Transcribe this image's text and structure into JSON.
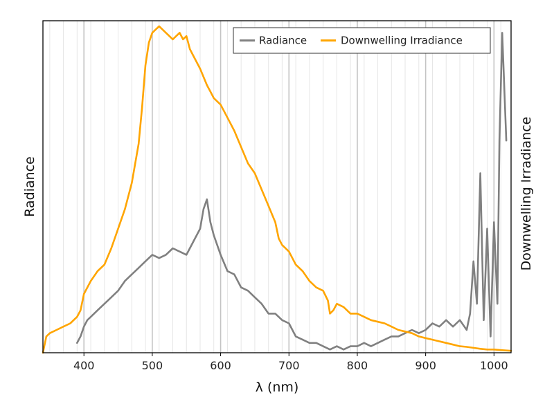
{
  "chart_data": {
    "type": "line",
    "xlabel": "λ (nm)",
    "ylabel_left": "Radiance",
    "ylabel_right": "Downwelling Irradiance",
    "xlim": [
      340,
      1025
    ],
    "xticks": [
      400,
      500,
      600,
      700,
      800,
      900,
      1000
    ],
    "grid": {
      "major_vertical": true,
      "minor_vertical": true,
      "horizontal": false
    },
    "y_tick_labels_shown": false,
    "legend_position": "top-right",
    "series": [
      {
        "name": "Radiance",
        "color": "#808080",
        "y_axis": "left",
        "values_relative": true,
        "ylim": [
          0,
          1
        ],
        "x": [
          390,
          395,
          400,
          405,
          410,
          420,
          430,
          440,
          450,
          460,
          470,
          480,
          490,
          500,
          510,
          520,
          530,
          540,
          550,
          560,
          570,
          575,
          580,
          585,
          590,
          600,
          610,
          620,
          630,
          640,
          650,
          660,
          670,
          680,
          690,
          700,
          710,
          720,
          730,
          740,
          750,
          760,
          770,
          780,
          790,
          800,
          810,
          820,
          830,
          840,
          850,
          860,
          870,
          880,
          890,
          900,
          910,
          920,
          930,
          940,
          950,
          960,
          965,
          970,
          975,
          980,
          985,
          990,
          995,
          1000,
          1005,
          1008,
          1012,
          1018
        ],
        "y": [
          0.03,
          0.05,
          0.08,
          0.1,
          0.11,
          0.13,
          0.15,
          0.17,
          0.19,
          0.22,
          0.24,
          0.26,
          0.28,
          0.3,
          0.29,
          0.3,
          0.32,
          0.31,
          0.3,
          0.34,
          0.38,
          0.44,
          0.47,
          0.4,
          0.36,
          0.3,
          0.25,
          0.24,
          0.2,
          0.19,
          0.17,
          0.15,
          0.12,
          0.12,
          0.1,
          0.09,
          0.05,
          0.04,
          0.03,
          0.03,
          0.02,
          0.01,
          0.02,
          0.01,
          0.02,
          0.02,
          0.03,
          0.02,
          0.03,
          0.04,
          0.05,
          0.05,
          0.06,
          0.07,
          0.06,
          0.07,
          0.09,
          0.08,
          0.1,
          0.08,
          0.1,
          0.07,
          0.12,
          0.28,
          0.15,
          0.55,
          0.1,
          0.38,
          0.05,
          0.4,
          0.15,
          0.65,
          0.98,
          0.65
        ]
      },
      {
        "name": "Downwelling Irradiance",
        "color": "#FFA500",
        "y_axis": "right",
        "values_relative": true,
        "ylim": [
          0,
          1
        ],
        "x": [
          340,
          345,
          350,
          360,
          370,
          380,
          390,
          395,
          400,
          410,
          420,
          430,
          440,
          450,
          460,
          470,
          480,
          485,
          490,
          495,
          500,
          505,
          510,
          515,
          520,
          525,
          530,
          535,
          540,
          545,
          550,
          555,
          560,
          570,
          580,
          585,
          590,
          600,
          610,
          620,
          630,
          640,
          650,
          660,
          670,
          680,
          685,
          690,
          700,
          710,
          720,
          730,
          740,
          750,
          757,
          760,
          765,
          770,
          780,
          790,
          800,
          810,
          820,
          830,
          840,
          850,
          860,
          870,
          880,
          890,
          900,
          910,
          920,
          930,
          940,
          950,
          960,
          970,
          980,
          990,
          1000,
          1010,
          1025
        ],
        "y": [
          0.0,
          0.05,
          0.06,
          0.07,
          0.08,
          0.09,
          0.11,
          0.13,
          0.18,
          0.22,
          0.25,
          0.27,
          0.32,
          0.38,
          0.44,
          0.52,
          0.64,
          0.75,
          0.88,
          0.95,
          0.98,
          0.99,
          1.0,
          0.99,
          0.98,
          0.97,
          0.96,
          0.97,
          0.98,
          0.96,
          0.97,
          0.93,
          0.91,
          0.87,
          0.82,
          0.8,
          0.78,
          0.76,
          0.72,
          0.68,
          0.63,
          0.58,
          0.55,
          0.5,
          0.45,
          0.4,
          0.35,
          0.33,
          0.31,
          0.27,
          0.25,
          0.22,
          0.2,
          0.19,
          0.16,
          0.12,
          0.13,
          0.15,
          0.14,
          0.12,
          0.12,
          0.11,
          0.1,
          0.095,
          0.09,
          0.08,
          0.07,
          0.065,
          0.06,
          0.05,
          0.045,
          0.04,
          0.035,
          0.03,
          0.025,
          0.02,
          0.018,
          0.015,
          0.012,
          0.01,
          0.01,
          0.008,
          0.006
        ]
      }
    ]
  }
}
